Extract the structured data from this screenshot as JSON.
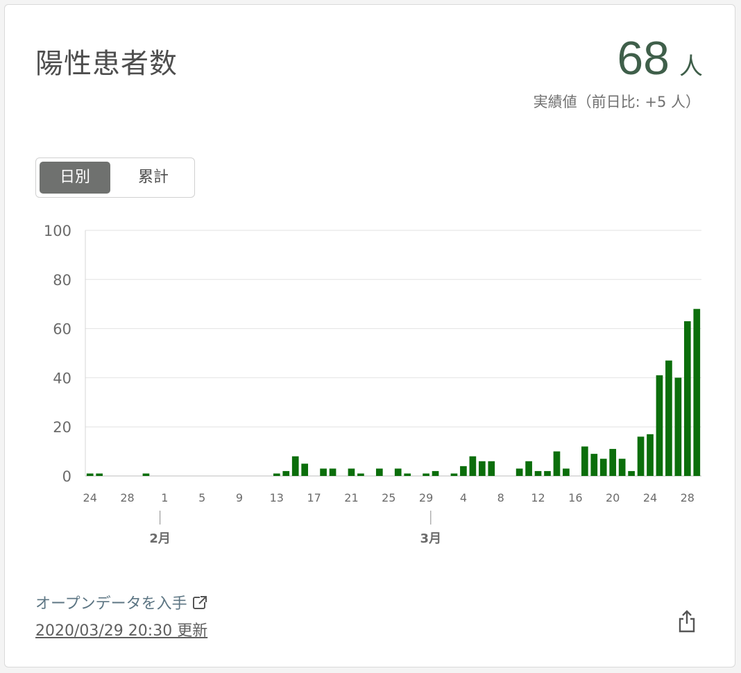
{
  "header": {
    "title": "陽性患者数",
    "value": "68",
    "unit": "人",
    "subtitle": "実績値（前日比: +5 人）"
  },
  "toggle": {
    "options": [
      "日別",
      "累計"
    ],
    "active": 0
  },
  "footer": {
    "open_data_link": "オープンデータを入手",
    "updated": "2020/03/29 20:30 更新"
  },
  "icons": {
    "external_link": "external-link-icon",
    "share": "share-icon"
  },
  "colors": {
    "bar": "#0b6e0b",
    "headline": "#3f5f4a",
    "toggle_active": "#6f716f"
  },
  "chart_data": {
    "type": "bar",
    "x_start": "2020-01-24",
    "x_end": "2020-03-29",
    "x": [
      "1/24",
      "1/25",
      "1/26",
      "1/27",
      "1/28",
      "1/29",
      "1/30",
      "1/31",
      "2/1",
      "2/2",
      "2/3",
      "2/4",
      "2/5",
      "2/6",
      "2/7",
      "2/8",
      "2/9",
      "2/10",
      "2/11",
      "2/12",
      "2/13",
      "2/14",
      "2/15",
      "2/16",
      "2/17",
      "2/18",
      "2/19",
      "2/20",
      "2/21",
      "2/22",
      "2/23",
      "2/24",
      "2/25",
      "2/26",
      "2/27",
      "2/28",
      "2/29",
      "3/1",
      "3/2",
      "3/3",
      "3/4",
      "3/5",
      "3/6",
      "3/7",
      "3/8",
      "3/9",
      "3/10",
      "3/11",
      "3/12",
      "3/13",
      "3/14",
      "3/15",
      "3/16",
      "3/17",
      "3/18",
      "3/19",
      "3/20",
      "3/21",
      "3/22",
      "3/23",
      "3/24",
      "3/25",
      "3/26",
      "3/27",
      "3/28",
      "3/29"
    ],
    "values": [
      1,
      1,
      0,
      0,
      0,
      0,
      1,
      0,
      0,
      0,
      0,
      0,
      0,
      0,
      0,
      0,
      0,
      0,
      0,
      0,
      1,
      2,
      8,
      5,
      0,
      3,
      3,
      0,
      3,
      1,
      0,
      3,
      0,
      3,
      1,
      0,
      1,
      2,
      0,
      1,
      4,
      8,
      6,
      6,
      0,
      0,
      3,
      6,
      2,
      2,
      10,
      3,
      0,
      12,
      9,
      7,
      11,
      7,
      2,
      16,
      17,
      41,
      47,
      40,
      63,
      68
    ],
    "x_tick_labels": [
      "24",
      "28",
      "1",
      "5",
      "9",
      "13",
      "17",
      "21",
      "25",
      "29",
      "4",
      "8",
      "12",
      "16",
      "20",
      "24",
      "28"
    ],
    "x_tick_index": [
      0,
      4,
      8,
      12,
      16,
      20,
      24,
      28,
      32,
      36,
      40,
      44,
      48,
      52,
      56,
      60,
      64
    ],
    "month_labels": [
      {
        "label": "2月",
        "index": 8
      },
      {
        "label": "3月",
        "index": 37
      }
    ],
    "y_ticks": [
      0,
      20,
      40,
      60,
      80,
      100
    ],
    "ylim": [
      0,
      100
    ],
    "grid": true
  }
}
